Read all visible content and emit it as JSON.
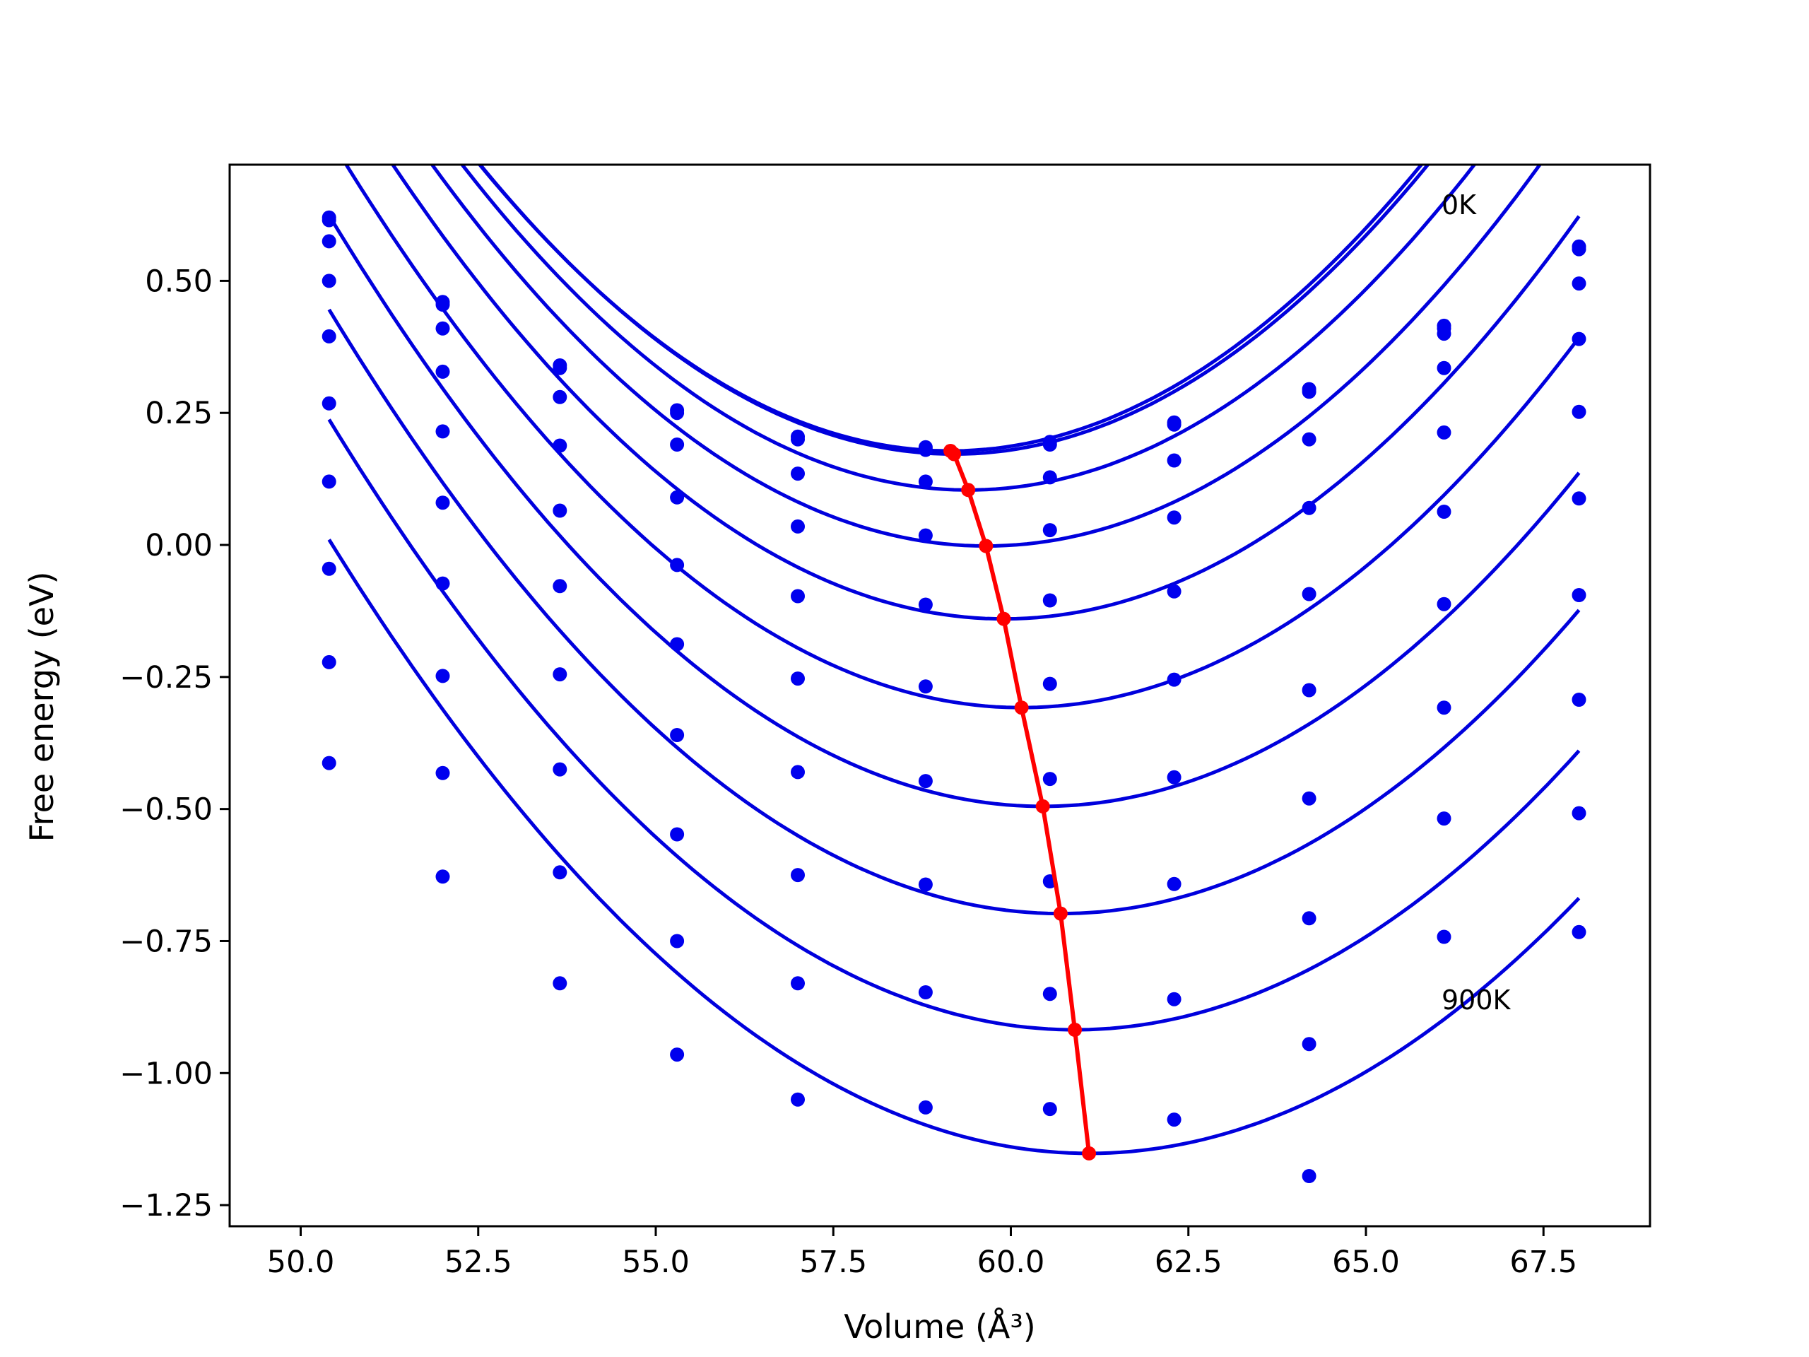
{
  "chart_data": {
    "type": "scatter",
    "xlabel": "Volume (Å³)",
    "ylabel": "Free energy (eV)",
    "xlim": [
      49.0,
      69.0
    ],
    "ylim": [
      -1.29,
      0.72
    ],
    "x_ticks": [
      "50.0",
      "52.5",
      "55.0",
      "57.5",
      "60.0",
      "62.5",
      "65.0",
      "67.5"
    ],
    "y_ticks": [
      "−1.25",
      "−1.00",
      "−0.75",
      "−0.50",
      "−0.25",
      "0.00",
      "0.25",
      "0.50"
    ],
    "grid": false,
    "annotations": [
      {
        "text": "0K",
        "x": 66.1,
        "y": 0.6
      },
      {
        "text": "900K",
        "x": 66.1,
        "y": -0.9
      }
    ],
    "volumes": [
      50.4,
      52.0,
      53.65,
      55.3,
      57.0,
      58.8,
      60.55,
      62.3,
      64.2,
      66.1,
      68.0
    ],
    "series": [
      {
        "values": [
          0.62,
          0.46,
          0.34,
          0.255,
          0.205,
          0.185,
          0.195,
          0.232,
          0.295,
          0.415,
          0.565
        ],
        "fit": {
          "a": 0.01233,
          "vmin": 59.15,
          "fmin": 0.178
        }
      },
      {
        "values": [
          0.615,
          0.455,
          0.335,
          0.25,
          0.2,
          0.18,
          0.19,
          0.228,
          0.29,
          0.41,
          0.56
        ],
        "fit": {
          "a": 0.01231,
          "vmin": 59.2,
          "fmin": 0.172
        }
      },
      {
        "values": [
          0.575,
          0.41,
          0.28,
          0.19,
          0.135,
          0.12,
          0.128,
          0.16,
          0.2,
          0.4,
          0.495
        ],
        "fit": {
          "a": 0.01213,
          "vmin": 59.4,
          "fmin": 0.104
        }
      },
      {
        "values": [
          0.5,
          0.328,
          0.188,
          0.09,
          0.035,
          0.018,
          0.028,
          0.052,
          0.07,
          0.335,
          0.39
        ],
        "fit": {
          "a": 0.01187,
          "vmin": 59.65,
          "fmin": -0.002
        }
      },
      {
        "values": [
          0.395,
          0.215,
          0.065,
          -0.038,
          -0.097,
          -0.113,
          -0.105,
          -0.088,
          -0.093,
          0.213,
          0.252
        ],
        "fit": {
          "a": 0.01162,
          "vmin": 59.9,
          "fmin": -0.14
        }
      },
      {
        "values": [
          0.268,
          0.08,
          -0.078,
          -0.188,
          -0.253,
          -0.268,
          -0.263,
          -0.255,
          -0.275,
          0.063,
          0.088
        ],
        "fit": {
          "a": 0.01137,
          "vmin": 60.15,
          "fmin": -0.308
        }
      },
      {
        "values": [
          0.12,
          -0.073,
          -0.245,
          -0.36,
          -0.43,
          -0.447,
          -0.443,
          -0.44,
          -0.48,
          -0.112,
          -0.095
        ],
        "fit": {
          "a": 0.01108,
          "vmin": 60.45,
          "fmin": -0.495
        }
      },
      {
        "values": [
          -0.045,
          -0.248,
          -0.425,
          -0.548,
          -0.625,
          -0.643,
          -0.637,
          -0.642,
          -0.707,
          -0.308,
          -0.293
        ],
        "fit": {
          "a": 0.01078,
          "vmin": 60.7,
          "fmin": -0.698
        }
      },
      {
        "values": [
          -0.222,
          -0.432,
          -0.62,
          -0.75,
          -0.83,
          -0.847,
          -0.85,
          -0.86,
          -0.945,
          -0.518,
          -0.508
        ],
        "fit": {
          "a": 0.01048,
          "vmin": 60.9,
          "fmin": -0.918
        }
      },
      {
        "values": [
          -0.413,
          -0.628,
          -0.83,
          -0.965,
          -1.05,
          -1.065,
          -1.068,
          -1.088,
          -1.195,
          -0.742,
          -0.733
        ],
        "fit": {
          "a": 0.01015,
          "vmin": 61.1,
          "fmin": -1.152
        }
      }
    ],
    "minimum_path": {
      "x": [
        59.15,
        59.2,
        59.4,
        59.65,
        59.9,
        60.15,
        60.45,
        60.7,
        60.9,
        61.1
      ],
      "y": [
        0.178,
        0.172,
        0.104,
        -0.002,
        -0.14,
        -0.308,
        -0.495,
        -0.698,
        -0.918,
        -1.152
      ]
    },
    "colors": {
      "points": "#0000ee",
      "fits": "#0000dd",
      "minimum_path": "#ff0000",
      "axes": "#000000"
    }
  }
}
